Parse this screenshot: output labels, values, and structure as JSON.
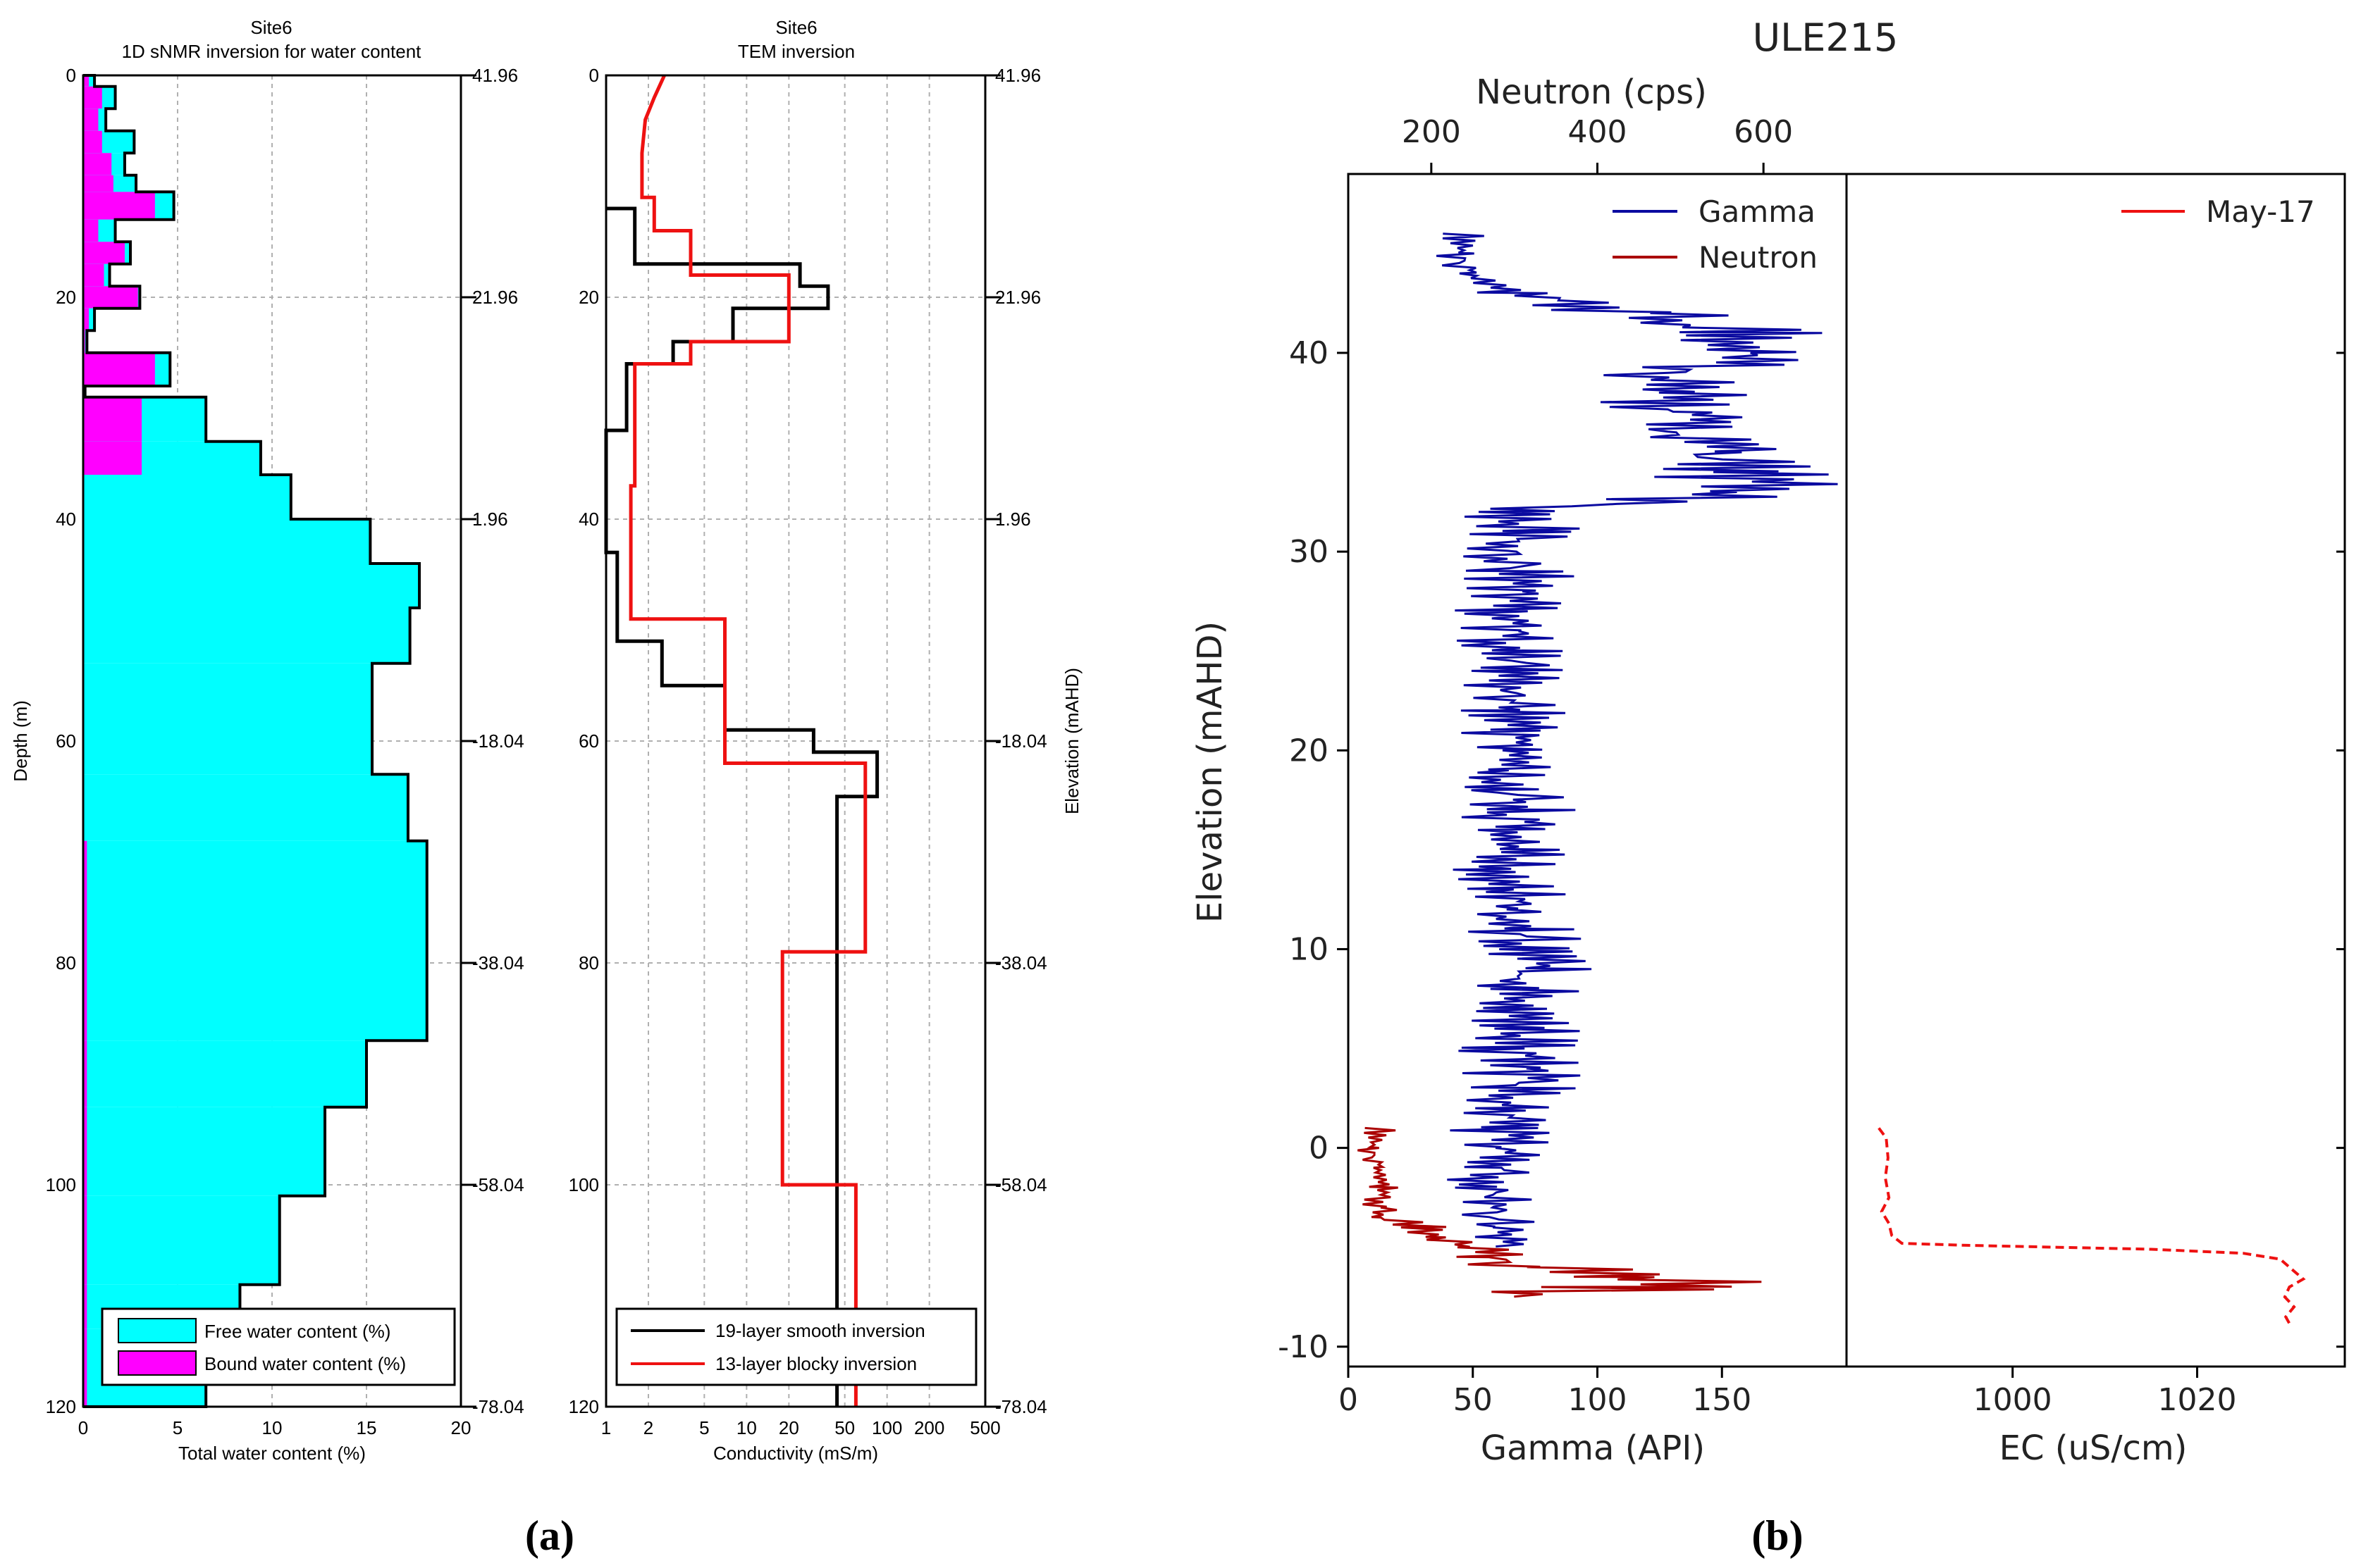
{
  "panel_labels": {
    "a": "(a)",
    "b": "(b)"
  },
  "chart_data": [
    {
      "id": "snmr",
      "type": "area",
      "title": "Site6",
      "subtitle": "1D sNMR inversion for water content",
      "xlabel": "Total water content (%)",
      "ylabel": "Depth (m)",
      "y2label": "",
      "xlim": [
        0,
        20
      ],
      "ylim": [
        0,
        120
      ],
      "y_inverted": true,
      "x_ticks": [
        "0",
        "5",
        "10",
        "15",
        "20"
      ],
      "y_ticks": [
        "0",
        "20",
        "40",
        "60",
        "80",
        "100",
        "120"
      ],
      "y2_ticks": [
        "41.96",
        "21.96",
        "1.96",
        "-18.04",
        "-38.04",
        "-58.04",
        "-78.04"
      ],
      "grid": true,
      "legend_position": "bottom",
      "colors": {
        "free": "#00ffff",
        "bound": "#ff00ff"
      },
      "series": [
        {
          "name": "Free water content (%)",
          "name_key": "free"
        },
        {
          "name": "Bound water content (%)",
          "name_key": "bound"
        }
      ],
      "layers": [
        {
          "top": 0,
          "bottom": 1,
          "total": 0.6,
          "bound": 0.3
        },
        {
          "top": 1,
          "bottom": 3,
          "total": 1.7,
          "bound": 1.0
        },
        {
          "top": 3,
          "bottom": 5,
          "total": 1.2,
          "bound": 0.8
        },
        {
          "top": 5,
          "bottom": 7,
          "total": 2.7,
          "bound": 1.0
        },
        {
          "top": 7,
          "bottom": 9,
          "total": 2.2,
          "bound": 1.5
        },
        {
          "top": 9,
          "bottom": 10.5,
          "total": 2.8,
          "bound": 1.6
        },
        {
          "top": 10.5,
          "bottom": 13,
          "total": 4.8,
          "bound": 3.8
        },
        {
          "top": 13,
          "bottom": 15,
          "total": 1.7,
          "bound": 0.8
        },
        {
          "top": 15,
          "bottom": 17,
          "total": 2.5,
          "bound": 2.2
        },
        {
          "top": 17,
          "bottom": 19,
          "total": 1.4,
          "bound": 1.1
        },
        {
          "top": 19,
          "bottom": 21,
          "total": 3.0,
          "bound": 2.9
        },
        {
          "top": 21,
          "bottom": 23,
          "total": 0.6,
          "bound": 0.3
        },
        {
          "top": 23,
          "bottom": 25,
          "total": 0.2,
          "bound": 0.1
        },
        {
          "top": 25,
          "bottom": 28,
          "total": 4.6,
          "bound": 3.8
        },
        {
          "top": 28,
          "bottom": 29,
          "total": 0.1,
          "bound": 0.1
        },
        {
          "top": 29,
          "bottom": 33,
          "total": 6.5,
          "bound": 3.1
        },
        {
          "top": 33,
          "bottom": 36,
          "total": 9.4,
          "bound": 3.1
        },
        {
          "top": 36,
          "bottom": 40,
          "total": 11.0,
          "bound": 0.05
        },
        {
          "top": 40,
          "bottom": 44,
          "total": 15.2,
          "bound": 0.05
        },
        {
          "top": 44,
          "bottom": 48,
          "total": 17.8,
          "bound": 0.05
        },
        {
          "top": 48,
          "bottom": 53,
          "total": 17.3,
          "bound": 0.05
        },
        {
          "top": 53,
          "bottom": 63,
          "total": 15.3,
          "bound": 0.05
        },
        {
          "top": 63,
          "bottom": 69,
          "total": 17.2,
          "bound": 0.05
        },
        {
          "top": 69,
          "bottom": 87,
          "total": 18.2,
          "bound": 0.2
        },
        {
          "top": 87,
          "bottom": 93,
          "total": 15.0,
          "bound": 0.2
        },
        {
          "top": 93,
          "bottom": 101,
          "total": 12.8,
          "bound": 0.2
        },
        {
          "top": 101,
          "bottom": 109,
          "total": 10.4,
          "bound": 0.2
        },
        {
          "top": 109,
          "bottom": 113,
          "total": 8.3,
          "bound": 0.2
        },
        {
          "top": 113,
          "bottom": 120,
          "total": 6.5,
          "bound": 0.2
        }
      ]
    },
    {
      "id": "tem",
      "type": "line",
      "title": "Site6",
      "subtitle": "TEM inversion",
      "xlabel": "Conductivity (mS/m)",
      "ylabel": "",
      "y2label": "Elevation (mAHD)",
      "x_scale": "log",
      "xlim": [
        1,
        500
      ],
      "ylim": [
        0,
        120
      ],
      "y_inverted": true,
      "x_ticks": [
        1,
        2,
        5,
        10,
        20,
        50,
        100,
        200,
        500
      ],
      "y_ticks": [
        "0",
        "20",
        "40",
        "60",
        "80",
        "100",
        "120"
      ],
      "y2_ticks": [
        "41.96",
        "21.96",
        "1.96",
        "-18.04",
        "-38.04",
        "-58.04",
        "-78.04"
      ],
      "grid": true,
      "legend_position": "bottom",
      "colors": {
        "smooth": "#000000",
        "blocky": "#ee1111"
      },
      "series": [
        {
          "name": "19-layer smooth inversion",
          "name_key": "smooth",
          "points": [
            [
              0.5,
              12
            ],
            [
              1.6,
              12
            ],
            [
              1.6,
              17
            ],
            [
              24,
              17
            ],
            [
              24,
              19
            ],
            [
              38,
              19
            ],
            [
              38,
              21
            ],
            [
              8,
              21
            ],
            [
              8,
              24
            ],
            [
              3,
              24
            ],
            [
              3,
              26
            ],
            [
              1.4,
              26
            ],
            [
              1.4,
              32
            ],
            [
              0.5,
              32
            ],
            [
              0.5,
              43
            ],
            [
              1.2,
              43
            ],
            [
              1.2,
              51
            ],
            [
              2.5,
              51
            ],
            [
              2.5,
              55
            ],
            [
              7,
              55
            ],
            [
              7,
              59
            ],
            [
              30,
              59
            ],
            [
              30,
              61
            ],
            [
              85,
              61
            ],
            [
              85,
              65
            ],
            [
              44,
              65
            ],
            [
              44,
              120
            ]
          ]
        },
        {
          "name": "13-layer blocky inversion",
          "name_key": "blocky",
          "points": [
            [
              2.6,
              0
            ],
            [
              2.2,
              2
            ],
            [
              1.9,
              4
            ],
            [
              1.8,
              7
            ],
            [
              1.8,
              11
            ],
            [
              2.2,
              11
            ],
            [
              2.2,
              14
            ],
            [
              4,
              14
            ],
            [
              4,
              18
            ],
            [
              20,
              18
            ],
            [
              20,
              24
            ],
            [
              4,
              24
            ],
            [
              4,
              26
            ],
            [
              1.6,
              26
            ],
            [
              1.6,
              37
            ],
            [
              1.5,
              37
            ],
            [
              1.5,
              49
            ],
            [
              7,
              49
            ],
            [
              7,
              62
            ],
            [
              70,
              62
            ],
            [
              70,
              79
            ],
            [
              18,
              79
            ],
            [
              18,
              100
            ],
            [
              60,
              100
            ],
            [
              60,
              120
            ]
          ]
        }
      ]
    },
    {
      "id": "ule_logs",
      "type": "line",
      "title": "ULE215",
      "xlabel": "Gamma (API)",
      "x2label": "Neutron (cps)",
      "ylabel": "Elevation (mAHD)",
      "xlim": [
        0,
        200
      ],
      "x2lim": [
        100,
        700
      ],
      "ylim": [
        -11,
        49
      ],
      "x_ticks": [
        0,
        50,
        100,
        150
      ],
      "x2_ticks": [
        200,
        400,
        600
      ],
      "y_ticks": [
        -10,
        0,
        10,
        20,
        30,
        40
      ],
      "grid": false,
      "legend_position": "top-right",
      "colors": {
        "gamma": "#0a0aa0",
        "neutron": "#aa0000"
      },
      "series": [
        {
          "name": "Gamma",
          "name_key": "gamma",
          "profile": [
            [
              46,
              38,
              55
            ],
            [
              45,
              35,
              58
            ],
            [
              44,
              35,
              60
            ],
            [
              43,
              40,
              80
            ],
            [
              42,
              80,
              150
            ],
            [
              41,
              120,
              200
            ],
            [
              40,
              140,
              200
            ],
            [
              39,
              100,
              170
            ],
            [
              38,
              90,
              160
            ],
            [
              37,
              100,
              170
            ],
            [
              36,
              95,
              170
            ],
            [
              35,
              105,
              180
            ],
            [
              34,
              110,
              195
            ],
            [
              33,
              120,
              200
            ],
            [
              32,
              45,
              85
            ],
            [
              31,
              45,
              95
            ],
            [
              30,
              40,
              90
            ],
            [
              29,
              45,
              95
            ],
            [
              28,
              45,
              90
            ],
            [
              27,
              42,
              95
            ],
            [
              26,
              45,
              85
            ],
            [
              25,
              42,
              90
            ],
            [
              24,
              45,
              92
            ],
            [
              23,
              42,
              85
            ],
            [
              22,
              45,
              90
            ],
            [
              21,
              43,
              92
            ],
            [
              20,
              45,
              88
            ],
            [
              19,
              42,
              90
            ],
            [
              18,
              40,
              85
            ],
            [
              17,
              45,
              92
            ],
            [
              16,
              40,
              90
            ],
            [
              15,
              45,
              92
            ],
            [
              14,
              35,
              85
            ],
            [
              13,
              48,
              92
            ],
            [
              12,
              45,
              85
            ],
            [
              11,
              45,
              92
            ],
            [
              10,
              48,
              100
            ],
            [
              9,
              45,
              102
            ],
            [
              8,
              48,
              98
            ],
            [
              7,
              45,
              92
            ],
            [
              6,
              47,
              98
            ],
            [
              5,
              42,
              95
            ],
            [
              4,
              45,
              95
            ],
            [
              3,
              40,
              92
            ],
            [
              2,
              42,
              85
            ],
            [
              1,
              40,
              88
            ],
            [
              0,
              40,
              85
            ],
            [
              -1,
              38,
              80
            ],
            [
              -2,
              40,
              85
            ],
            [
              -3,
              38,
              82
            ],
            [
              -4,
              42,
              80
            ],
            [
              -5,
              45,
              85
            ]
          ]
        },
        {
          "name": "Neutron",
          "name_key": "neutron",
          "profile": [
            [
              1,
              120,
              160
            ],
            [
              0,
              110,
              150
            ],
            [
              -1,
              115,
              155
            ],
            [
              -2,
              110,
              160
            ],
            [
              -3,
              112,
              158
            ],
            [
              -3.5,
              115,
              170
            ],
            [
              -4,
              150,
              230
            ],
            [
              -4.5,
              180,
              260
            ],
            [
              -5,
              200,
              300
            ],
            [
              -5.5,
              220,
              330
            ],
            [
              -6,
              240,
              450
            ],
            [
              -6.5,
              260,
              560
            ],
            [
              -7,
              300,
              650
            ],
            [
              -7.5,
              170,
              450
            ]
          ]
        }
      ]
    },
    {
      "id": "ule_ec",
      "type": "line",
      "title": "",
      "xlabel": "EC (uS/cm)",
      "ylabel": "",
      "xlim": [
        982,
        1036
      ],
      "ylim": [
        -11,
        49
      ],
      "x_ticks": [
        1000,
        1020
      ],
      "grid": false,
      "legend_position": "top-right",
      "colors": {
        "ec": "#ee1111"
      },
      "series": [
        {
          "name": "May-17",
          "name_key": "ec",
          "dashed": true,
          "points": [
            [
              985.5,
              1
            ],
            [
              986.3,
              0.5
            ],
            [
              986.5,
              -0.5
            ],
            [
              986.2,
              -1.5
            ],
            [
              986.6,
              -2.5
            ],
            [
              985.8,
              -3.2
            ],
            [
              986.6,
              -3.8
            ],
            [
              986.9,
              -4.4
            ],
            [
              988,
              -4.8
            ],
            [
              995,
              -4.9
            ],
            [
              1005,
              -5.0
            ],
            [
              1015,
              -5.1
            ],
            [
              1025,
              -5.3
            ],
            [
              1029,
              -5.6
            ],
            [
              1030.5,
              -6.2
            ],
            [
              1031.5,
              -6.6
            ],
            [
              1030,
              -7
            ],
            [
              1029.5,
              -7.5
            ],
            [
              1030.5,
              -8
            ],
            [
              1029.6,
              -8.5
            ],
            [
              1030.2,
              -9
            ]
          ]
        }
      ]
    }
  ]
}
